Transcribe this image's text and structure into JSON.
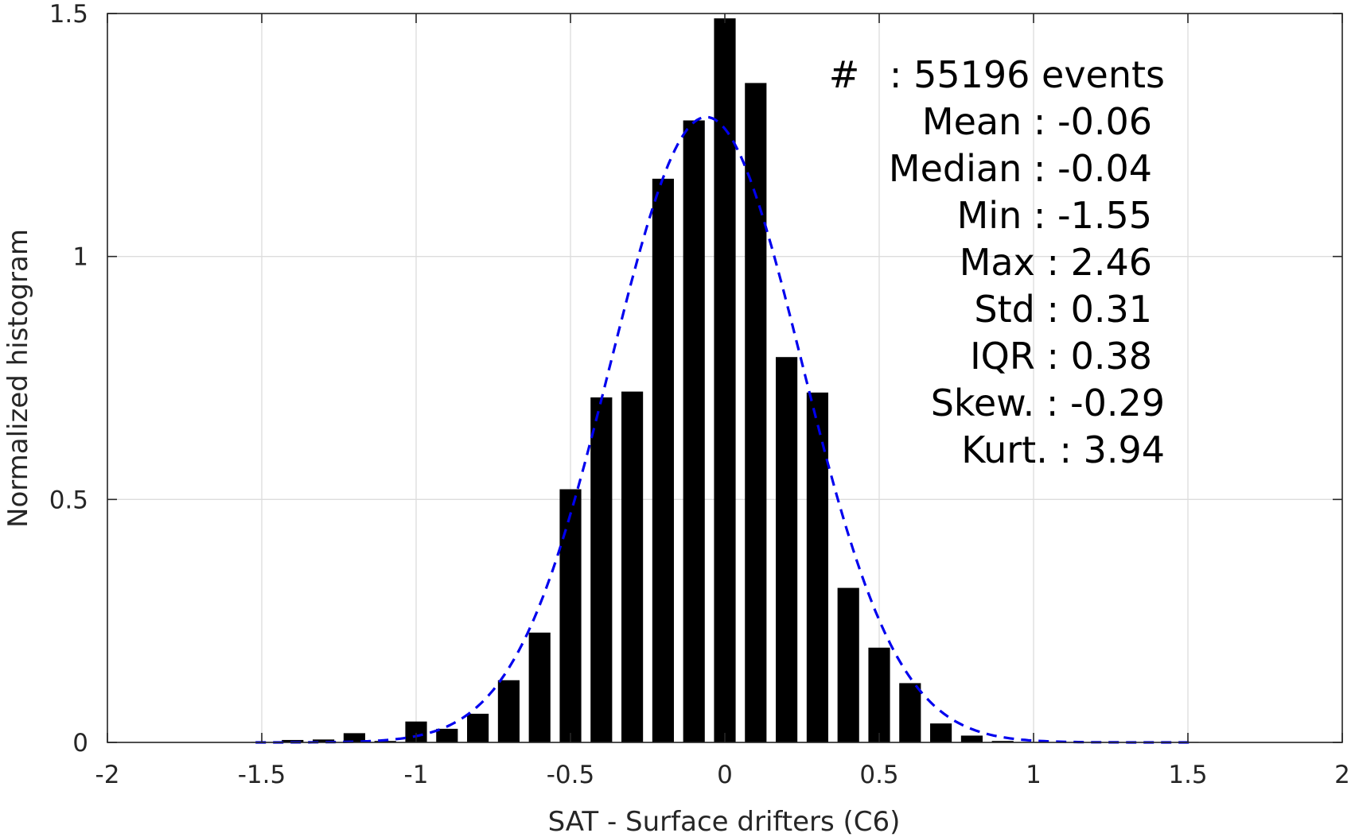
{
  "chart_data": {
    "type": "bar",
    "xlabel": "SAT - Surface drifters (C6)",
    "ylabel": "Normalized histogram",
    "xlim": [
      -2,
      2
    ],
    "ylim": [
      0,
      1.5
    ],
    "grid": true,
    "x_ticks": [
      -2,
      -1.5,
      -1,
      -0.5,
      0,
      0.5,
      1,
      1.5,
      2
    ],
    "x_tick_labels": [
      "-2",
      "-1.5",
      "-1",
      "-0.5",
      "0",
      "0.5",
      "1",
      "1.5",
      "2"
    ],
    "y_ticks": [
      0,
      0.5,
      1,
      1.5
    ],
    "y_tick_labels": [
      "0",
      "0.5",
      "1",
      "1.5"
    ],
    "bar_color": "#000000",
    "bar_width": 0.07,
    "bars": {
      "x": [
        -1.5,
        -1.4,
        -1.3,
        -1.2,
        -1.1,
        -1.0,
        -0.9,
        -0.8,
        -0.7,
        -0.6,
        -0.5,
        -0.4,
        -0.3,
        -0.2,
        -0.1,
        0.0,
        0.1,
        0.2,
        0.3,
        0.4,
        0.5,
        0.6,
        0.7,
        0.8,
        0.9,
        1.0,
        1.1,
        1.2,
        1.3,
        1.4,
        1.5
      ],
      "values": [
        0.001,
        0.005,
        0.006,
        0.019,
        0.003,
        0.043,
        0.028,
        0.059,
        0.128,
        0.226,
        0.521,
        0.71,
        0.722,
        1.16,
        1.28,
        1.49,
        1.357,
        0.793,
        0.72,
        0.318,
        0.195,
        0.122,
        0.039,
        0.014,
        0.003,
        0.001,
        0.0,
        0.0,
        0.0,
        0.0,
        0.001
      ]
    },
    "fit": {
      "name": "normal fit",
      "style": "dashed",
      "color": "#0000ee",
      "mean": -0.06,
      "std": 0.31,
      "x_range": [
        -1.52,
        1.52
      ]
    },
    "annotations": [
      {
        "label": "#",
        "sep": ":",
        "value": "55196 events"
      },
      {
        "label": "Mean",
        "sep": ":",
        "value": "-0.06"
      },
      {
        "label": "Median",
        "sep": ":",
        "value": "-0.04"
      },
      {
        "label": "Min",
        "sep": ":",
        "value": "-1.55"
      },
      {
        "label": "Max",
        "sep": ":",
        "value": "2.46"
      },
      {
        "label": "Std",
        "sep": ":",
        "value": "0.31"
      },
      {
        "label": "IQR",
        "sep": ":",
        "value": "0.38"
      },
      {
        "label": "Skew.",
        "sep": ":",
        "value": "-0.29"
      },
      {
        "label": "Kurt.",
        "sep": ":",
        "value": "3.94"
      }
    ]
  }
}
